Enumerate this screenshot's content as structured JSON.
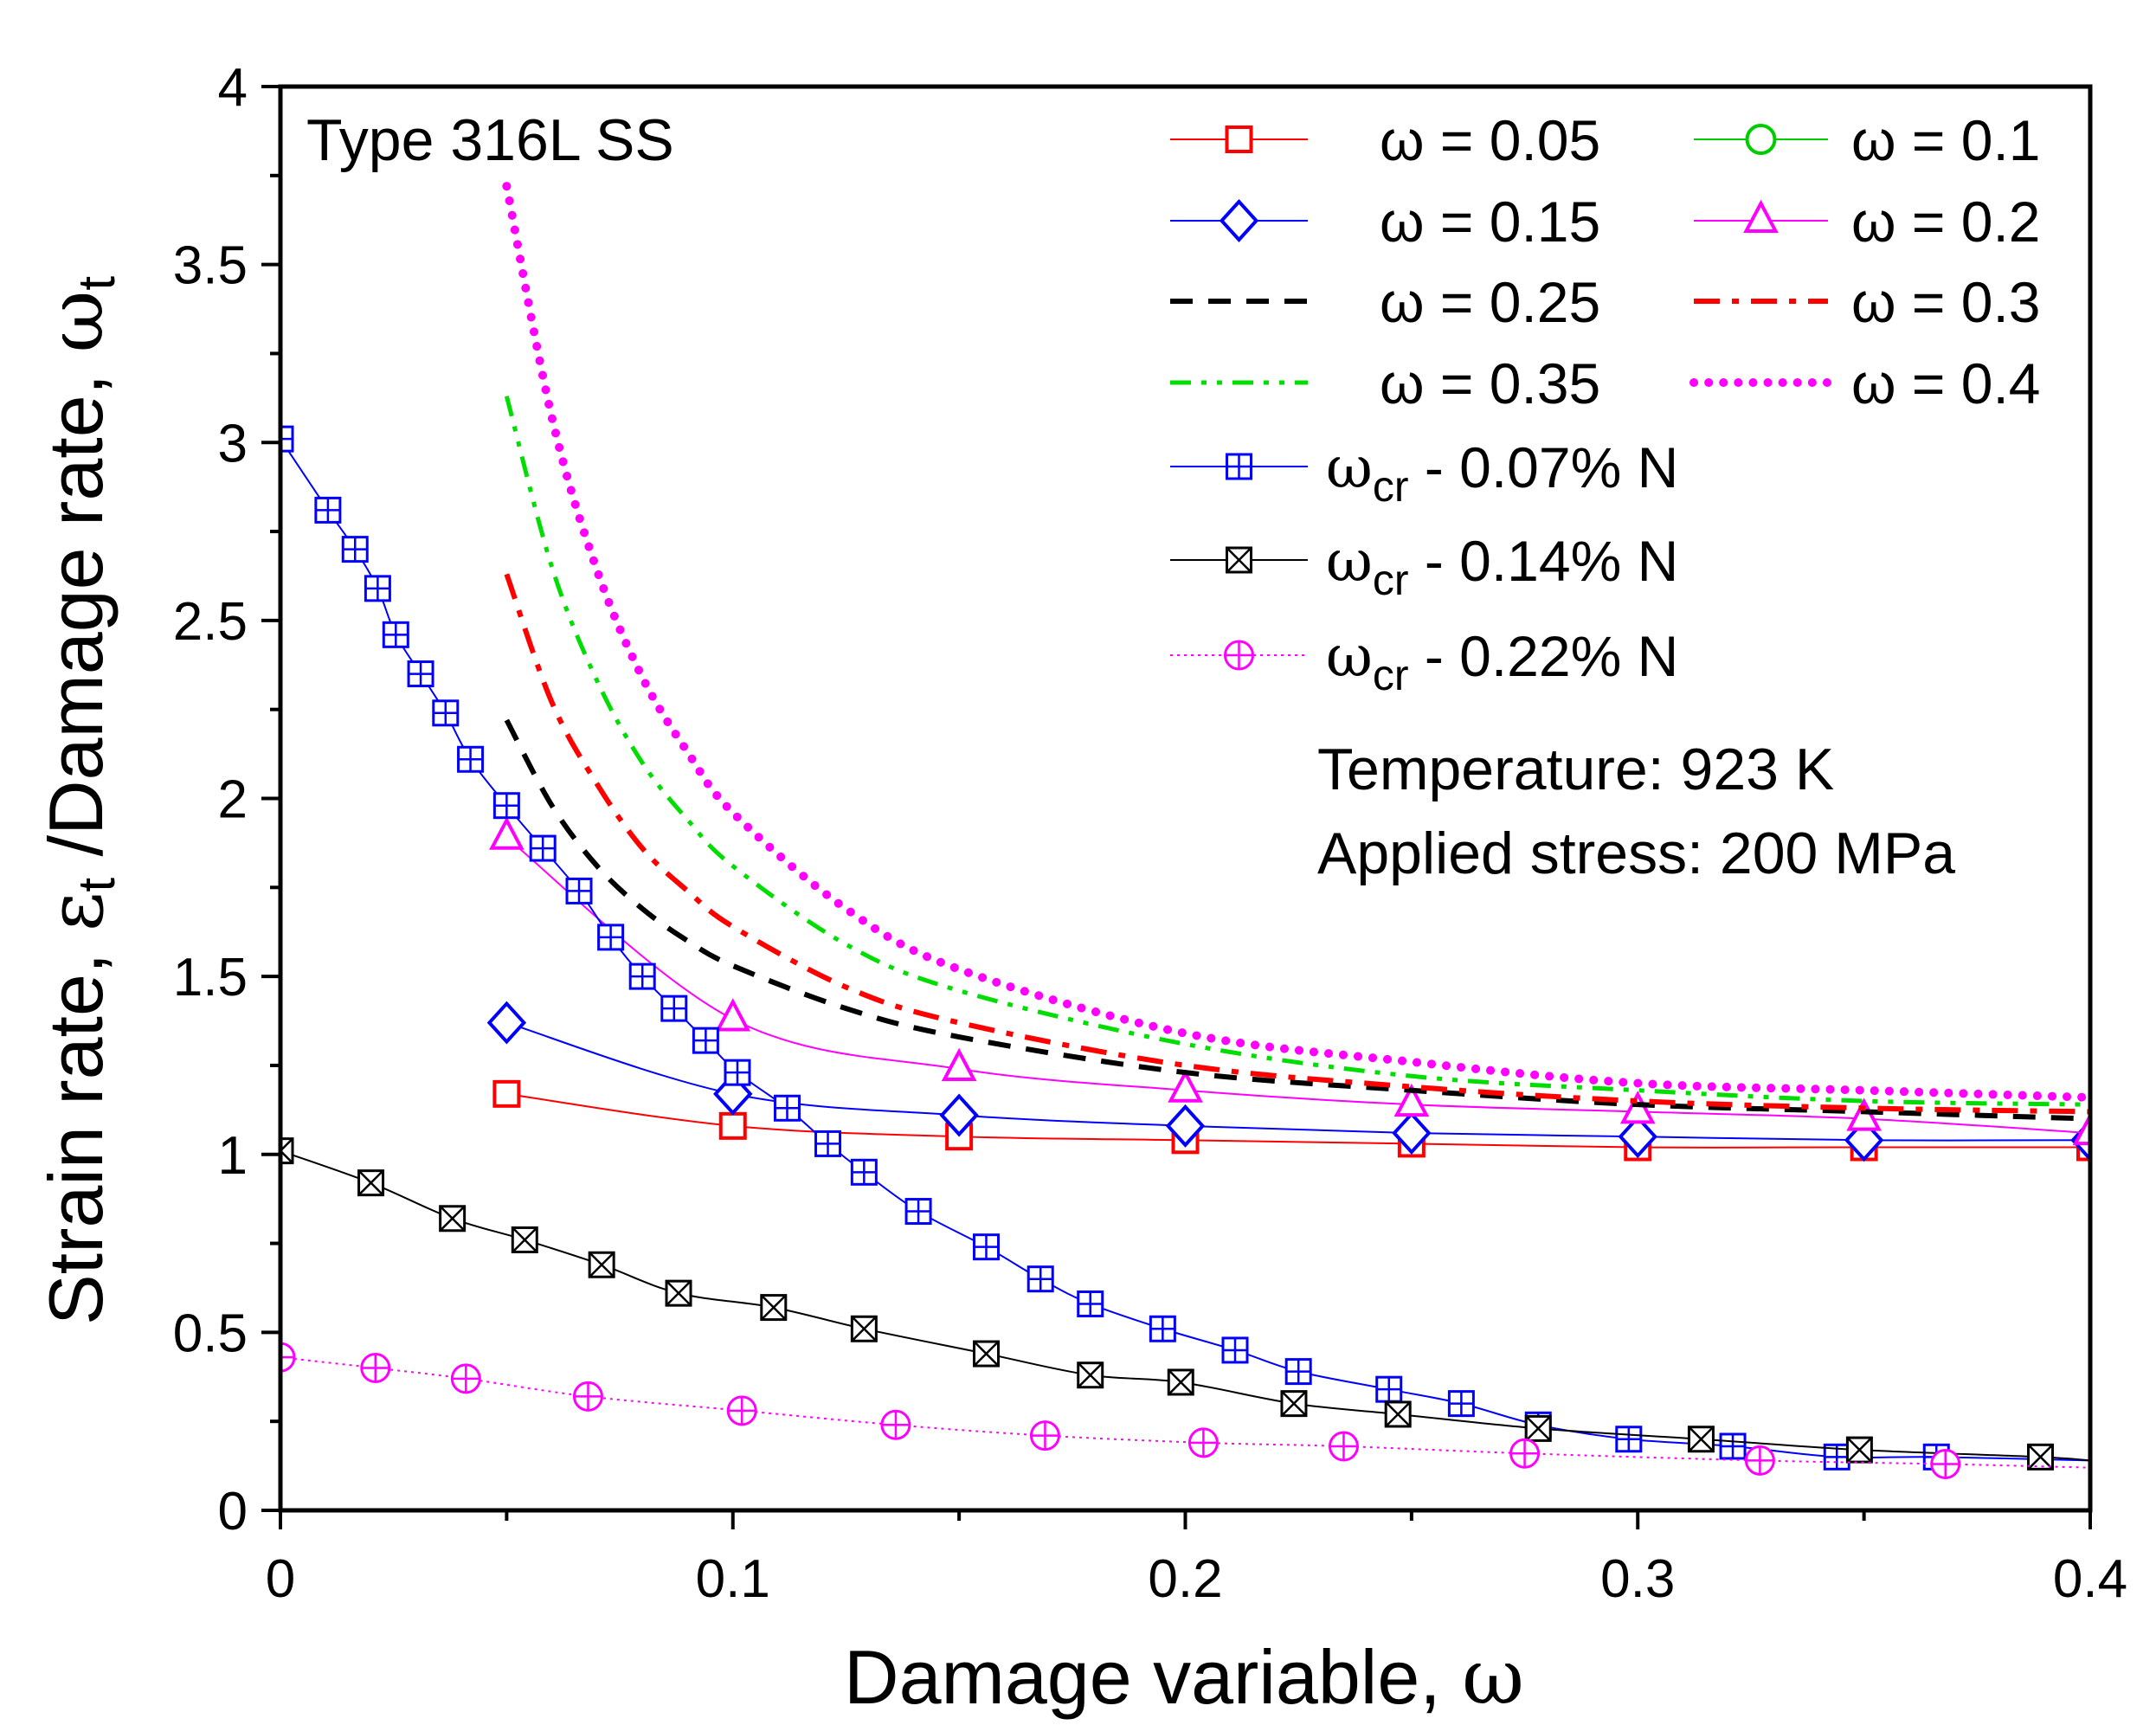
{
  "chart_data": {
    "type": "line",
    "xlabel": {
      "text": "Damage variable, ",
      "symbol": "ω"
    },
    "ylabel": {
      "part1": "Strain rate, ",
      "eps": "ε",
      "eps_sub": "t",
      "part2": " /Damage rate, ",
      "omega": "ω",
      "omega_sub": "t"
    },
    "xlim": [
      0,
      0.4
    ],
    "ylim": [
      0,
      4
    ],
    "xticks": [
      0,
      0.1,
      0.2,
      0.3,
      0.4
    ],
    "xtick_labels": [
      "0",
      "0.1",
      "0.2",
      "0.3",
      "0.4"
    ],
    "yticks": [
      0,
      0.5,
      1,
      1.5,
      2,
      2.5,
      3,
      3.5,
      4
    ],
    "ytick_labels": [
      "0",
      "0.5",
      "1",
      "1.5",
      "2",
      "2.5",
      "3",
      "3.5",
      "4"
    ],
    "grid": false,
    "legend_placement": "top-right",
    "annotations": {
      "material": "Type 316L SS",
      "temperature": "Temperature: 923 K",
      "stress": "Applied stress: 200 MPa"
    },
    "series": [
      {
        "name": "ω = 0.05",
        "color": "#ff0000",
        "marker": "square",
        "line": "solid",
        "x": [
          0.05,
          0.1,
          0.15,
          0.2,
          0.25,
          0.3,
          0.35,
          0.4
        ],
        "y": [
          1.17,
          1.08,
          1.05,
          1.04,
          1.03,
          1.02,
          1.02,
          1.02
        ]
      },
      {
        "name": "ω = 0.1",
        "color": "#00cc00",
        "marker": "circle",
        "line": "solid",
        "x": [],
        "y": []
      },
      {
        "name": "ω = 0.15",
        "color": "#0000ff",
        "marker": "diamond",
        "line": "solid",
        "x": [
          0.05,
          0.1,
          0.15,
          0.2,
          0.25,
          0.3,
          0.35,
          0.4
        ],
        "y": [
          1.37,
          1.17,
          1.11,
          1.08,
          1.06,
          1.05,
          1.04,
          1.04
        ]
      },
      {
        "name": "ω = 0.2",
        "color": "#ff00ff",
        "marker": "triangle",
        "line": "solid",
        "x": [
          0.05,
          0.1,
          0.15,
          0.2,
          0.25,
          0.3,
          0.35,
          0.4
        ],
        "y": [
          1.89,
          1.38,
          1.24,
          1.18,
          1.14,
          1.12,
          1.1,
          1.06
        ]
      },
      {
        "name": "ω = 0.25",
        "color": "#000000",
        "marker": "none",
        "line": "dash",
        "x": [
          0.05,
          0.06,
          0.07,
          0.08,
          0.09,
          0.1,
          0.125,
          0.15,
          0.2,
          0.25,
          0.3,
          0.35,
          0.4
        ],
        "y": [
          2.22,
          1.98,
          1.81,
          1.69,
          1.6,
          1.53,
          1.41,
          1.33,
          1.23,
          1.18,
          1.14,
          1.12,
          1.1
        ]
      },
      {
        "name": "ω = 0.3",
        "color": "#ff0000",
        "marker": "none",
        "line": "dashdot",
        "x": [
          0.05,
          0.06,
          0.07,
          0.08,
          0.09,
          0.1,
          0.125,
          0.15,
          0.2,
          0.25,
          0.3,
          0.35,
          0.4
        ],
        "y": [
          2.63,
          2.27,
          2.04,
          1.86,
          1.74,
          1.64,
          1.47,
          1.37,
          1.25,
          1.19,
          1.15,
          1.13,
          1.12
        ]
      },
      {
        "name": "ω = 0.35",
        "color": "#00dd00",
        "marker": "none",
        "line": "dashdotdot",
        "x": [
          0.05,
          0.06,
          0.07,
          0.08,
          0.09,
          0.1,
          0.125,
          0.15,
          0.2,
          0.25,
          0.3,
          0.35,
          0.4
        ],
        "y": [
          3.13,
          2.65,
          2.33,
          2.1,
          1.94,
          1.81,
          1.59,
          1.46,
          1.31,
          1.22,
          1.18,
          1.15,
          1.14
        ]
      },
      {
        "name": "ω = 0.4",
        "color": "#ff00ff",
        "marker": "none",
        "line": "dot",
        "x": [
          0.05,
          0.06,
          0.07,
          0.08,
          0.09,
          0.1,
          0.125,
          0.15,
          0.2,
          0.25,
          0.3,
          0.35,
          0.4
        ],
        "y": [
          3.72,
          3.07,
          2.64,
          2.34,
          2.13,
          1.96,
          1.69,
          1.52,
          1.34,
          1.26,
          1.2,
          1.18,
          1.16
        ]
      },
      {
        "name": "ωcr - 0.07% N",
        "name_symbol": "ω",
        "name_sub": "cr",
        "name_rest": " - 0.07% N",
        "color": "#0000ff",
        "marker": "square-plus",
        "line": "solid",
        "x": [
          0,
          0.0105,
          0.0165,
          0.0215,
          0.0255,
          0.031,
          0.0365,
          0.042,
          0.05,
          0.058,
          0.066,
          0.073,
          0.08,
          0.087,
          0.094,
          0.101,
          0.112,
          0.121,
          0.129,
          0.141,
          0.156,
          0.168,
          0.179,
          0.195,
          0.211,
          0.225,
          0.245,
          0.261,
          0.278,
          0.298,
          0.321,
          0.344,
          0.366
        ],
        "y": [
          3.01,
          2.81,
          2.7,
          2.59,
          2.46,
          2.35,
          2.24,
          2.11,
          1.98,
          1.86,
          1.74,
          1.61,
          1.5,
          1.41,
          1.32,
          1.23,
          1.13,
          1.03,
          0.95,
          0.84,
          0.74,
          0.65,
          0.58,
          0.51,
          0.45,
          0.39,
          0.34,
          0.3,
          0.24,
          0.2,
          0.18,
          0.15,
          0.15
        ]
      },
      {
        "name": "ωcr - 0.14% N",
        "name_symbol": "ω",
        "name_sub": "cr",
        "name_rest": " - 0.14% N",
        "color": "#000000",
        "marker": "square-x",
        "line": "solid",
        "x": [
          0,
          0.02,
          0.038,
          0.054,
          0.071,
          0.088,
          0.109,
          0.129,
          0.156,
          0.179,
          0.199,
          0.224,
          0.247,
          0.278,
          0.314,
          0.349,
          0.389
        ],
        "y": [
          1.01,
          0.92,
          0.82,
          0.76,
          0.69,
          0.61,
          0.57,
          0.51,
          0.44,
          0.38,
          0.36,
          0.3,
          0.27,
          0.23,
          0.2,
          0.17,
          0.15
        ]
      },
      {
        "name": "ωcr - 0.22% N",
        "name_symbol": "ω",
        "name_sub": "cr",
        "name_rest": " - 0.22% N",
        "color": "#ff00ff",
        "marker": "circle-plus",
        "line": "dotted-thin",
        "x": [
          0,
          0.021,
          0.041,
          0.068,
          0.102,
          0.136,
          0.169,
          0.204,
          0.235,
          0.275,
          0.327,
          0.368
        ],
        "y": [
          0.43,
          0.4,
          0.37,
          0.32,
          0.28,
          0.24,
          0.21,
          0.19,
          0.18,
          0.16,
          0.14,
          0.13
        ]
      }
    ]
  }
}
